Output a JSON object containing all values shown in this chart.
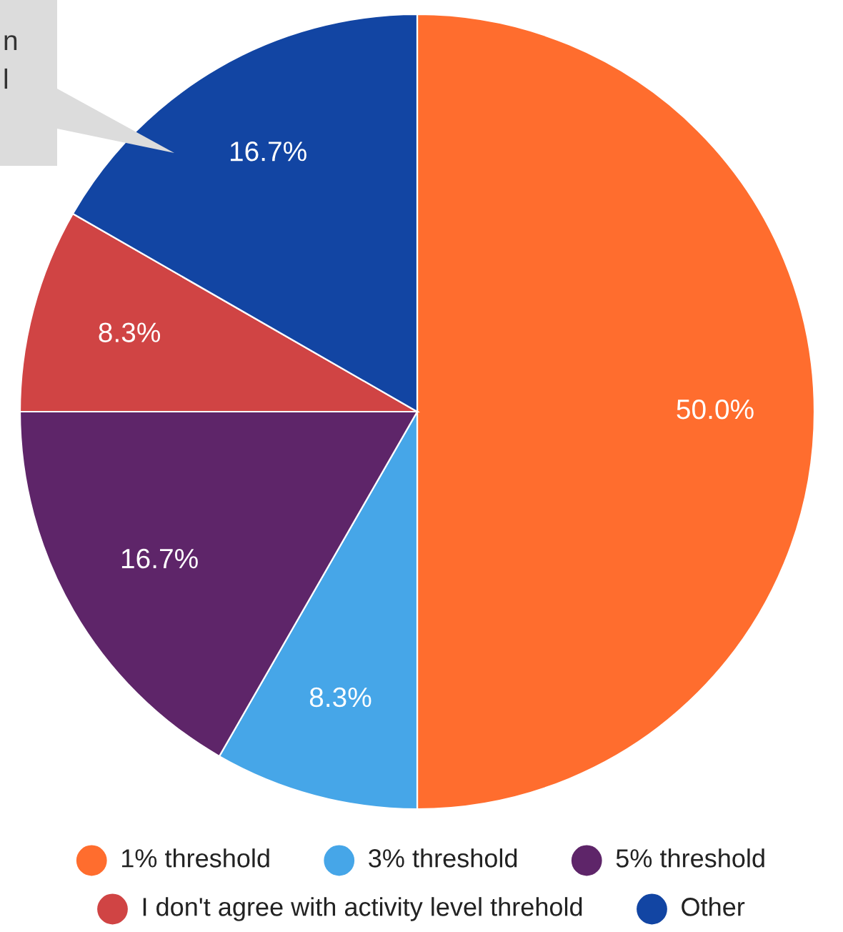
{
  "chart_data": {
    "type": "pie",
    "categories": [
      "1% threshold",
      "3% threshold",
      "5% threshold",
      "I don't agree with activity level threhold",
      "Other"
    ],
    "values": [
      50.0,
      8.3,
      16.7,
      8.3,
      16.7
    ],
    "colors": [
      "#ff6d2e",
      "#46a6e8",
      "#5e2569",
      "#d04444",
      "#1245a3"
    ],
    "value_labels": [
      "50.0%",
      "8.3%",
      "16.7%",
      "8.3%",
      "16.7%"
    ],
    "legend": "bottom",
    "annotations": [
      "n",
      "l"
    ]
  }
}
